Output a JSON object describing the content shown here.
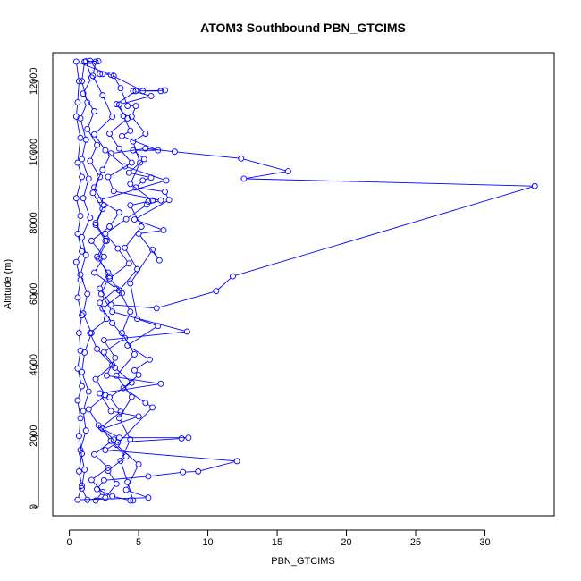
{
  "chart_data": {
    "type": "scatter",
    "title": "ATOM3 Southbound PBN_GTCIMS",
    "xlabel": "PBN_GTCIMS",
    "ylabel": "Altitude (m)",
    "xlim": [
      -1.2,
      35.0
    ],
    "ylim": [
      -250,
      12800
    ],
    "xticks": [
      0,
      5,
      10,
      15,
      20,
      25,
      30
    ],
    "yticks": [
      0,
      2000,
      4000,
      6000,
      8000,
      10000,
      12000
    ],
    "grid": false,
    "legend": "none",
    "connected": true,
    "series_color": "#0000ff",
    "series": [
      {
        "values": [
          [
            1.9,
            180
          ],
          [
            2.4,
            420
          ],
          [
            1.6,
            760
          ],
          [
            2.8,
            1100
          ],
          [
            1.8,
            1480
          ],
          [
            3.2,
            1900
          ],
          [
            2.1,
            2300
          ],
          [
            1.4,
            2750
          ],
          [
            2.6,
            3150
          ],
          [
            1.9,
            3600
          ],
          [
            3.1,
            4000
          ],
          [
            2.0,
            4450
          ],
          [
            1.5,
            4900
          ],
          [
            2.7,
            5300
          ],
          [
            2.2,
            5750
          ],
          [
            3.4,
            6150
          ],
          [
            1.8,
            6600
          ],
          [
            2.5,
            7050
          ],
          [
            1.6,
            7500
          ],
          [
            2.9,
            7900
          ],
          [
            3.6,
            8300
          ],
          [
            2.2,
            8650
          ],
          [
            7.0,
            9200
          ],
          [
            4.0,
            9600
          ],
          [
            2.6,
            10050
          ],
          [
            1.8,
            10500
          ],
          [
            3.1,
            11000
          ],
          [
            2.4,
            11600
          ],
          [
            1.7,
            12150
          ],
          [
            1.9,
            12550
          ],
          [
            1.1,
            12550
          ],
          [
            0.9,
            12000
          ],
          [
            1.3,
            11400
          ],
          [
            0.8,
            10950
          ],
          [
            1.2,
            10350
          ],
          [
            0.9,
            9800
          ],
          [
            1.4,
            9250
          ],
          [
            1.0,
            8700
          ],
          [
            1.5,
            8150
          ],
          [
            0.9,
            7600
          ],
          [
            1.2,
            7100
          ],
          [
            0.8,
            6550
          ],
          [
            1.3,
            6000
          ],
          [
            1.0,
            5450
          ],
          [
            1.6,
            4900
          ],
          [
            1.1,
            4350
          ],
          [
            0.9,
            3800
          ],
          [
            1.4,
            3250
          ],
          [
            1.0,
            2700
          ],
          [
            1.2,
            2150
          ],
          [
            0.8,
            1600
          ],
          [
            1.1,
            1050
          ],
          [
            0.9,
            520
          ],
          [
            1.3,
            200
          ],
          [
            2.6,
            260
          ],
          [
            3.4,
            650
          ],
          [
            2.8,
            1020
          ],
          [
            4.1,
            1420
          ],
          [
            3.0,
            1860
          ],
          [
            2.3,
            2240
          ],
          [
            3.7,
            2680
          ],
          [
            2.9,
            3090
          ],
          [
            4.5,
            3500
          ],
          [
            3.3,
            3920
          ],
          [
            2.5,
            4360
          ],
          [
            4.0,
            4760
          ],
          [
            3.1,
            5180
          ],
          [
            2.4,
            5590
          ],
          [
            3.8,
            6020
          ],
          [
            2.9,
            6440
          ],
          [
            4.3,
            6860
          ],
          [
            3.5,
            7280
          ],
          [
            2.6,
            7700
          ],
          [
            4.1,
            8110
          ],
          [
            5.6,
            8520
          ],
          [
            6.6,
            8640
          ],
          [
            3.2,
            8900
          ],
          [
            2.8,
            9300
          ],
          [
            4.5,
            9700
          ],
          [
            3.6,
            10100
          ],
          [
            2.9,
            10520
          ],
          [
            4.2,
            10950
          ],
          [
            3.4,
            11350
          ],
          [
            4.8,
            11720
          ],
          [
            6.9,
            11740
          ],
          [
            6.6,
            11720
          ],
          [
            5.3,
            11720
          ],
          [
            3.0,
            12180
          ],
          [
            2.4,
            12200
          ],
          [
            2.2,
            12200
          ],
          [
            1.5,
            12570
          ],
          [
            2.1,
            12560
          ],
          [
            1.2,
            12560
          ],
          [
            1.6,
            12100
          ],
          [
            1.0,
            11650
          ],
          [
            1.8,
            11150
          ],
          [
            1.3,
            10650
          ],
          [
            2.0,
            10200
          ],
          [
            1.5,
            9750
          ],
          [
            2.2,
            9300
          ],
          [
            1.7,
            8850
          ],
          [
            2.4,
            8400
          ],
          [
            1.9,
            7950
          ],
          [
            2.6,
            7500
          ],
          [
            2.0,
            7050
          ],
          [
            2.8,
            6600
          ],
          [
            2.2,
            6150
          ],
          [
            3.0,
            5700
          ],
          [
            6.3,
            5600
          ],
          [
            10.6,
            6080
          ],
          [
            11.8,
            6500
          ],
          [
            33.6,
            9040
          ],
          [
            12.6,
            9250
          ],
          [
            15.8,
            9460
          ],
          [
            12.4,
            9820
          ],
          [
            7.6,
            10010
          ],
          [
            5.5,
            10100
          ],
          [
            3.0,
            9960
          ],
          [
            2.4,
            9500
          ],
          [
            1.8,
            9000
          ],
          [
            2.5,
            8500
          ],
          [
            1.9,
            8000
          ],
          [
            2.7,
            7500
          ],
          [
            2.1,
            7000
          ],
          [
            2.9,
            6500
          ],
          [
            2.3,
            6000
          ],
          [
            3.1,
            5500
          ],
          [
            8.5,
            4940
          ],
          [
            2.5,
            4700
          ],
          [
            3.3,
            4200
          ],
          [
            2.7,
            3700
          ],
          [
            6.6,
            3470
          ],
          [
            2.2,
            3200
          ],
          [
            3.0,
            2700
          ],
          [
            5.0,
            2550
          ],
          [
            2.4,
            2200
          ],
          [
            3.6,
            1950
          ],
          [
            8.6,
            1950
          ],
          [
            8.1,
            1930
          ],
          [
            3.5,
            1820
          ],
          [
            2.6,
            1600
          ],
          [
            12.1,
            1290
          ],
          [
            9.3,
            1000
          ],
          [
            8.2,
            980
          ],
          [
            5.7,
            860
          ],
          [
            2.5,
            750
          ],
          [
            2.0,
            500
          ],
          [
            3.1,
            300
          ],
          [
            4.4,
            180
          ],
          [
            4.6,
            180
          ],
          [
            4.2,
            700
          ],
          [
            3.7,
            1300
          ],
          [
            4.4,
            1900
          ],
          [
            3.6,
            2500
          ],
          [
            4.5,
            3100
          ],
          [
            3.4,
            3700
          ],
          [
            4.7,
            4300
          ],
          [
            3.8,
            4900
          ],
          [
            4.4,
            5500
          ],
          [
            3.6,
            6100
          ],
          [
            4.9,
            6700
          ],
          [
            4.0,
            7300
          ],
          [
            5.2,
            7900
          ],
          [
            4.4,
            8500
          ],
          [
            5.7,
            8610
          ],
          [
            6.0,
            8640
          ],
          [
            4.4,
            9100
          ],
          [
            5.1,
            9700
          ],
          [
            4.6,
            10300
          ],
          [
            5.5,
            10520
          ],
          [
            4.5,
            11000
          ],
          [
            4.8,
            11300
          ],
          [
            4.2,
            11300
          ],
          [
            3.7,
            11800
          ],
          [
            3.2,
            12150
          ],
          [
            0.5,
            12550
          ],
          [
            0.7,
            12000
          ],
          [
            0.6,
            11400
          ],
          [
            0.5,
            11000
          ],
          [
            0.8,
            10400
          ],
          [
            0.6,
            9700
          ],
          [
            0.9,
            9300
          ],
          [
            0.5,
            8700
          ],
          [
            0.8,
            8200
          ],
          [
            0.6,
            7700
          ],
          [
            0.9,
            7200
          ],
          [
            0.5,
            6900
          ],
          [
            0.8,
            6400
          ],
          [
            0.6,
            5900
          ],
          [
            0.9,
            5400
          ],
          [
            0.7,
            4900
          ],
          [
            0.8,
            4400
          ],
          [
            0.6,
            3900
          ],
          [
            0.9,
            3400
          ],
          [
            0.6,
            3000
          ],
          [
            0.8,
            2500
          ],
          [
            0.7,
            2000
          ],
          [
            0.9,
            1500
          ],
          [
            0.7,
            1000
          ],
          [
            0.9,
            600
          ],
          [
            0.6,
            200
          ],
          [
            5.7,
            260
          ],
          [
            4.1,
            480
          ],
          [
            5.0,
            1200
          ],
          [
            3.4,
            1750
          ],
          [
            6.0,
            2800
          ],
          [
            5.5,
            2930
          ],
          [
            3.9,
            3350
          ],
          [
            5.0,
            3720
          ],
          [
            4.7,
            3850
          ],
          [
            5.8,
            4150
          ],
          [
            4.2,
            4550
          ],
          [
            6.4,
            5100
          ],
          [
            4.9,
            5300
          ],
          [
            4.4,
            6300
          ],
          [
            6.0,
            7250
          ],
          [
            6.5,
            6950
          ],
          [
            5.0,
            7700
          ],
          [
            6.8,
            7800
          ],
          [
            4.7,
            8100
          ],
          [
            7.2,
            8650
          ],
          [
            6.9,
            8880
          ],
          [
            4.8,
            9000
          ],
          [
            5.3,
            9200
          ],
          [
            5.9,
            9280
          ],
          [
            4.3,
            9420
          ],
          [
            5.4,
            9800
          ],
          [
            4.6,
            10050
          ],
          [
            6.4,
            10050
          ],
          [
            3.8,
            10450
          ],
          [
            4.4,
            10600
          ],
          [
            3.9,
            11020
          ],
          [
            3.6,
            11340
          ],
          [
            5.9,
            11580
          ],
          [
            4.6,
            11720
          ]
        ]
      }
    ]
  }
}
